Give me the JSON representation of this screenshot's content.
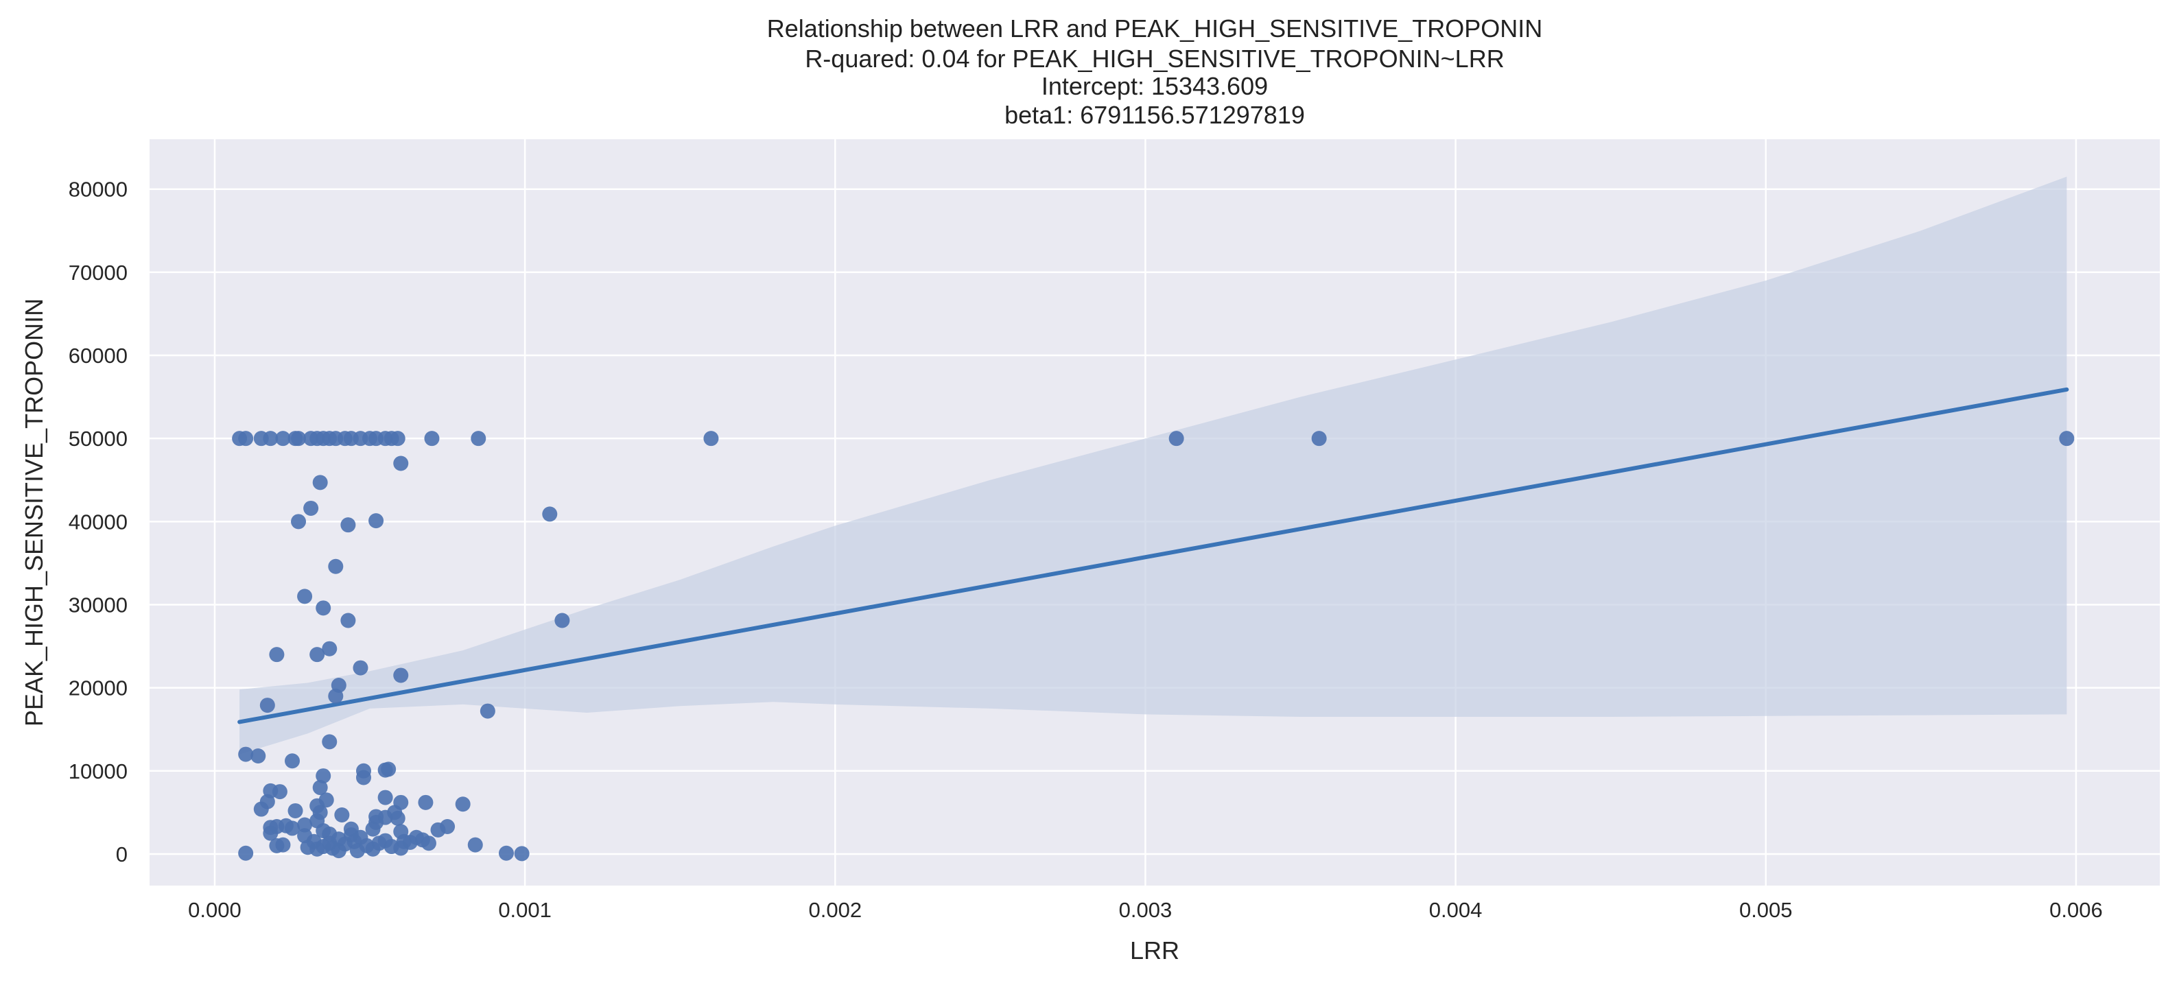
{
  "chart_data": {
    "type": "scatter",
    "title_lines": [
      "Relationship between LRR and PEAK_HIGH_SENSITIVE_TROPONIN",
      "R-quared: 0.04 for PEAK_HIGH_SENSITIVE_TROPONIN~LRR",
      "Intercept: 15343.609",
      "beta1: 6791156.571297819"
    ],
    "xlabel": "LRR",
    "ylabel": "PEAK_HIGH_SENSITIVE_TROPONIN",
    "xlim": [
      -0.00021,
      0.00627
    ],
    "ylim": [
      -3800,
      86000
    ],
    "x_ticks": [
      0.0,
      0.001,
      0.002,
      0.003,
      0.004,
      0.005,
      0.006
    ],
    "x_tick_labels": [
      "0.000",
      "0.001",
      "0.002",
      "0.003",
      "0.004",
      "0.005",
      "0.006"
    ],
    "y_ticks": [
      0,
      10000,
      20000,
      30000,
      40000,
      50000,
      60000,
      70000,
      80000
    ],
    "y_tick_labels": [
      "0",
      "10000",
      "20000",
      "30000",
      "40000",
      "50000",
      "60000",
      "70000",
      "80000"
    ],
    "grid": true,
    "colors": {
      "background": "#eaeaf2",
      "grid": "#ffffff",
      "points": "#4c72b0",
      "line": "#3a74b7",
      "band": "#c6d0e4"
    },
    "regression": {
      "intercept": 15343.609,
      "slope": 6791156.571297819,
      "x_range": [
        8e-05,
        0.00597
      ]
    },
    "confidence_band": {
      "x": [
        8e-05,
        0.0003,
        0.0005,
        0.0008,
        0.001,
        0.0012,
        0.0015,
        0.0018,
        0.002,
        0.0025,
        0.003,
        0.0035,
        0.004,
        0.0045,
        0.005,
        0.0055,
        0.00597
      ],
      "upper": [
        19800,
        20600,
        22000,
        24500,
        27000,
        29500,
        33000,
        37000,
        39500,
        45000,
        50000,
        55000,
        59500,
        64000,
        69000,
        75000,
        81500
      ],
      "lower": [
        12000,
        14500,
        17500,
        18000,
        17500,
        17000,
        17800,
        18300,
        18000,
        17500,
        16800,
        16500,
        16500,
        16500,
        16600,
        16700,
        16800
      ]
    },
    "points": [
      {
        "x": 8e-05,
        "y": 50000
      },
      {
        "x": 0.0001,
        "y": 50000
      },
      {
        "x": 0.00015,
        "y": 50000
      },
      {
        "x": 0.00018,
        "y": 50000
      },
      {
        "x": 0.00022,
        "y": 50000
      },
      {
        "x": 0.00026,
        "y": 50000
      },
      {
        "x": 0.00027,
        "y": 50000
      },
      {
        "x": 0.00031,
        "y": 50000
      },
      {
        "x": 0.00033,
        "y": 50000
      },
      {
        "x": 0.00035,
        "y": 50000
      },
      {
        "x": 0.00037,
        "y": 50000
      },
      {
        "x": 0.00039,
        "y": 50000
      },
      {
        "x": 0.00042,
        "y": 50000
      },
      {
        "x": 0.00044,
        "y": 50000
      },
      {
        "x": 0.00047,
        "y": 50000
      },
      {
        "x": 0.0005,
        "y": 50000
      },
      {
        "x": 0.00052,
        "y": 50000
      },
      {
        "x": 0.00055,
        "y": 50000
      },
      {
        "x": 0.00057,
        "y": 50000
      },
      {
        "x": 0.00059,
        "y": 50000
      },
      {
        "x": 0.0007,
        "y": 50000
      },
      {
        "x": 0.00085,
        "y": 50000
      },
      {
        "x": 0.0016,
        "y": 50000
      },
      {
        "x": 0.0031,
        "y": 50000
      },
      {
        "x": 0.00356,
        "y": 50000
      },
      {
        "x": 0.00597,
        "y": 50000
      },
      {
        "x": 0.0006,
        "y": 47000
      },
      {
        "x": 0.00034,
        "y": 44700
      },
      {
        "x": 0.00031,
        "y": 41600
      },
      {
        "x": 0.00027,
        "y": 40000
      },
      {
        "x": 0.00043,
        "y": 39600
      },
      {
        "x": 0.00052,
        "y": 40100
      },
      {
        "x": 0.00108,
        "y": 40900
      },
      {
        "x": 0.00039,
        "y": 34600
      },
      {
        "x": 0.00029,
        "y": 31000
      },
      {
        "x": 0.00035,
        "y": 29600
      },
      {
        "x": 0.00043,
        "y": 28100
      },
      {
        "x": 0.00112,
        "y": 28100
      },
      {
        "x": 0.00037,
        "y": 24700
      },
      {
        "x": 0.00033,
        "y": 24000
      },
      {
        "x": 0.0002,
        "y": 24000
      },
      {
        "x": 0.00047,
        "y": 22400
      },
      {
        "x": 0.0006,
        "y": 21500
      },
      {
        "x": 0.0004,
        "y": 20300
      },
      {
        "x": 0.00039,
        "y": 19000
      },
      {
        "x": 0.00017,
        "y": 17900
      },
      {
        "x": 0.00088,
        "y": 17200
      },
      {
        "x": 0.00037,
        "y": 13500
      },
      {
        "x": 0.0001,
        "y": 12000
      },
      {
        "x": 0.00014,
        "y": 11800
      },
      {
        "x": 0.00025,
        "y": 11200
      },
      {
        "x": 0.00055,
        "y": 10100
      },
      {
        "x": 0.00048,
        "y": 10000
      },
      {
        "x": 0.00056,
        "y": 10200
      },
      {
        "x": 0.00035,
        "y": 9400
      },
      {
        "x": 0.00048,
        "y": 9200
      },
      {
        "x": 0.00034,
        "y": 8000
      },
      {
        "x": 0.00018,
        "y": 7600
      },
      {
        "x": 0.00021,
        "y": 7500
      },
      {
        "x": 0.00055,
        "y": 6800
      },
      {
        "x": 0.00036,
        "y": 6500
      },
      {
        "x": 0.00017,
        "y": 6300
      },
      {
        "x": 0.0006,
        "y": 6200
      },
      {
        "x": 0.00068,
        "y": 6200
      },
      {
        "x": 0.0008,
        "y": 6000
      },
      {
        "x": 0.00033,
        "y": 5800
      },
      {
        "x": 0.00015,
        "y": 5400
      },
      {
        "x": 0.00026,
        "y": 5200
      },
      {
        "x": 0.00058,
        "y": 5000
      },
      {
        "x": 0.00034,
        "y": 5000
      },
      {
        "x": 0.00041,
        "y": 4700
      },
      {
        "x": 0.00052,
        "y": 4500
      },
      {
        "x": 0.00055,
        "y": 4400
      },
      {
        "x": 0.00059,
        "y": 4300
      },
      {
        "x": 0.00033,
        "y": 4000
      },
      {
        "x": 0.00052,
        "y": 3800
      },
      {
        "x": 0.00029,
        "y": 3500
      },
      {
        "x": 0.00023,
        "y": 3400
      },
      {
        "x": 0.0002,
        "y": 3300
      },
      {
        "x": 0.00018,
        "y": 3200
      },
      {
        "x": 0.00075,
        "y": 3300
      },
      {
        "x": 0.00025,
        "y": 3100
      },
      {
        "x": 0.00044,
        "y": 3000
      },
      {
        "x": 0.00051,
        "y": 3000
      },
      {
        "x": 0.00072,
        "y": 2900
      },
      {
        "x": 0.00035,
        "y": 2800
      },
      {
        "x": 0.0006,
        "y": 2700
      },
      {
        "x": 0.00018,
        "y": 2500
      },
      {
        "x": 0.00037,
        "y": 2400
      },
      {
        "x": 0.00044,
        "y": 2300
      },
      {
        "x": 0.00029,
        "y": 2200
      },
      {
        "x": 0.00047,
        "y": 2000
      },
      {
        "x": 0.00065,
        "y": 2000
      },
      {
        "x": 0.0004,
        "y": 1800
      },
      {
        "x": 0.00067,
        "y": 1700
      },
      {
        "x": 0.00055,
        "y": 1600
      },
      {
        "x": 0.00032,
        "y": 1500
      },
      {
        "x": 0.00045,
        "y": 1500
      },
      {
        "x": 0.00061,
        "y": 1500
      },
      {
        "x": 0.00063,
        "y": 1400
      },
      {
        "x": 0.00037,
        "y": 1300
      },
      {
        "x": 0.00053,
        "y": 1300
      },
      {
        "x": 0.00069,
        "y": 1300
      },
      {
        "x": 0.00042,
        "y": 1200
      },
      {
        "x": 0.00022,
        "y": 1100
      },
      {
        "x": 0.00084,
        "y": 1100
      },
      {
        "x": 0.0002,
        "y": 1000
      },
      {
        "x": 0.00049,
        "y": 1000
      },
      {
        "x": 0.00035,
        "y": 900
      },
      {
        "x": 0.00057,
        "y": 900
      },
      {
        "x": 0.0003,
        "y": 800
      },
      {
        "x": 0.00038,
        "y": 700
      },
      {
        "x": 0.0006,
        "y": 700
      },
      {
        "x": 0.00033,
        "y": 600
      },
      {
        "x": 0.00051,
        "y": 600
      },
      {
        "x": 0.00046,
        "y": 400
      },
      {
        "x": 0.0004,
        "y": 400
      },
      {
        "x": 0.0001,
        "y": 100
      },
      {
        "x": 0.00094,
        "y": 100
      },
      {
        "x": 0.00099,
        "y": 50
      }
    ]
  }
}
